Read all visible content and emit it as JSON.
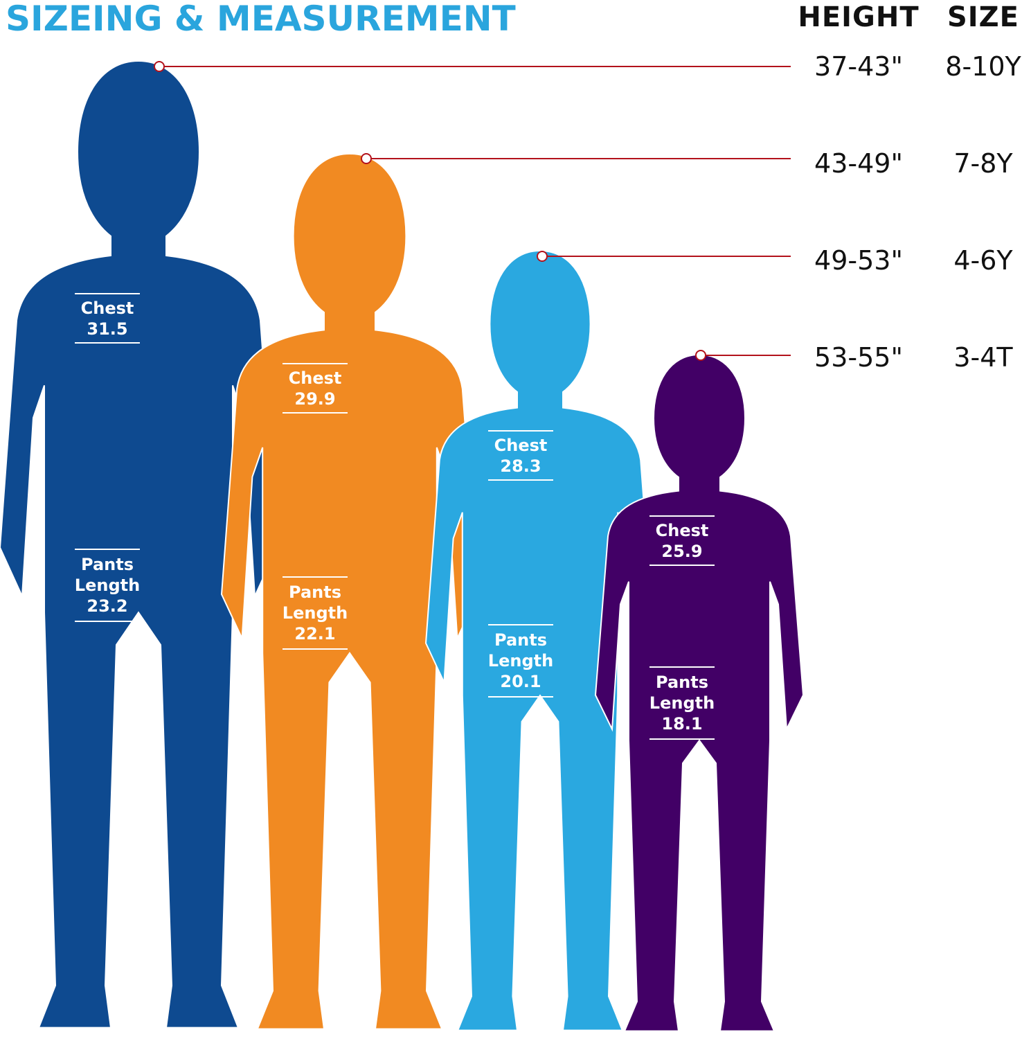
{
  "title": "SIZEING & MEASUREMENT",
  "headers": {
    "height": "HEIGHT",
    "size": "SIZE"
  },
  "figures": [
    {
      "height": "37-43\"",
      "size": "8-10Y",
      "chest": {
        "label": "Chest",
        "value": 31.5
      },
      "pants": {
        "label": [
          "Pants",
          "Length"
        ],
        "value": 23.2
      }
    },
    {
      "height": "43-49\"",
      "size": "7-8Y",
      "chest": {
        "label": "Chest",
        "value": 29.9
      },
      "pants": {
        "label": [
          "Pants",
          "Length"
        ],
        "value": 22.1
      }
    },
    {
      "height": "49-53\"",
      "size": "4-6Y",
      "chest": {
        "label": "Chest",
        "value": 28.3
      },
      "pants": {
        "label": [
          "Pants",
          "Length"
        ],
        "value": 20.1
      }
    },
    {
      "height": "53-55\"",
      "size": "3-4T",
      "chest": {
        "label": "Chest",
        "value": 25.9
      },
      "pants": {
        "label": [
          "Pants",
          "Length"
        ],
        "value": 18.1
      }
    }
  ]
}
